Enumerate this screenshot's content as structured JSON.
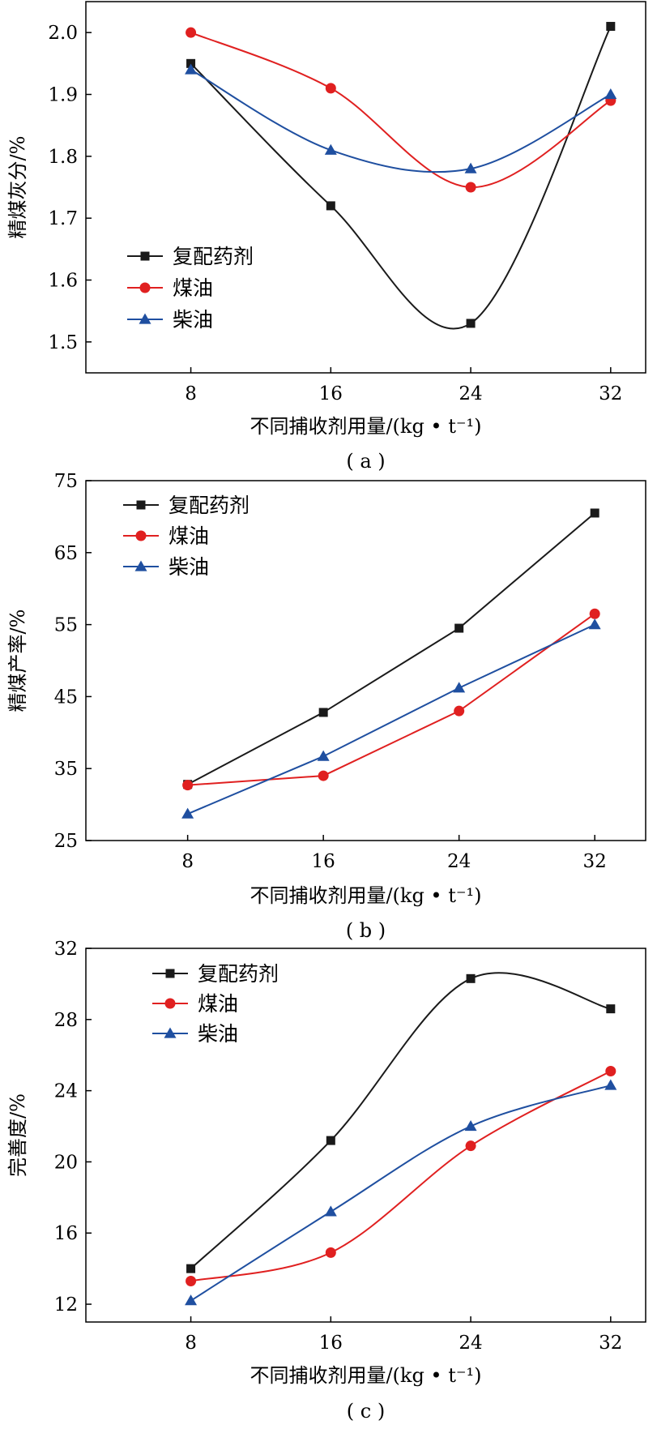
{
  "chart_data": [
    {
      "type": "line",
      "panel_label": "( a )",
      "xlabel": "不同捕收剂用量/(kg • t⁻¹)",
      "ylabel": "精煤灰分/%",
      "x": [
        8,
        16,
        24,
        32
      ],
      "xlim": [
        2,
        34
      ],
      "ylim": [
        1.45,
        2.05
      ],
      "yticks": [
        1.5,
        1.6,
        1.7,
        1.8,
        1.9,
        2.0
      ],
      "ytick_labels": [
        "1.5",
        "1.6",
        "1.7",
        "1.8",
        "1.9",
        "2.0"
      ],
      "smooth": true,
      "grid": false,
      "legend_position": "lower-left",
      "series": [
        {
          "name": "复配药剂",
          "marker": "square",
          "color": "#1a1a1a",
          "values": [
            1.95,
            1.72,
            1.53,
            2.01
          ]
        },
        {
          "name": "煤油",
          "marker": "circle",
          "color": "#e02020",
          "values": [
            2.0,
            1.91,
            1.75,
            1.89
          ]
        },
        {
          "name": "柴油",
          "marker": "triangle",
          "color": "#1f4fa0",
          "values": [
            1.94,
            1.81,
            1.78,
            1.9
          ]
        }
      ]
    },
    {
      "type": "line",
      "panel_label": "( b )",
      "xlabel": "不同捕收剂用量/(kg • t⁻¹)",
      "ylabel": "精煤产率/%",
      "x": [
        8,
        16,
        24,
        32
      ],
      "xlim": [
        2,
        35
      ],
      "ylim": [
        25,
        75
      ],
      "yticks": [
        25,
        35,
        45,
        55,
        65,
        75
      ],
      "ytick_labels": [
        "25",
        "35",
        "45",
        "55",
        "65",
        "75"
      ],
      "smooth": false,
      "grid": false,
      "legend_position": "top-left",
      "series": [
        {
          "name": "复配药剂",
          "marker": "square",
          "color": "#1a1a1a",
          "values": [
            32.8,
            42.8,
            54.5,
            70.5
          ]
        },
        {
          "name": "煤油",
          "marker": "circle",
          "color": "#e02020",
          "values": [
            32.7,
            34.0,
            43.0,
            56.5
          ]
        },
        {
          "name": "柴油",
          "marker": "triangle",
          "color": "#1f4fa0",
          "values": [
            28.7,
            36.7,
            46.2,
            55.0
          ]
        }
      ]
    },
    {
      "type": "line",
      "panel_label": "( c )",
      "xlabel": "不同捕收剂用量/(kg • t⁻¹)",
      "ylabel": "完善度/%",
      "x": [
        8,
        16,
        24,
        32
      ],
      "xlim": [
        2,
        34
      ],
      "ylim": [
        11,
        32
      ],
      "yticks": [
        12,
        16,
        20,
        24,
        28,
        32
      ],
      "ytick_labels": [
        "12",
        "16",
        "20",
        "24",
        "28",
        "32"
      ],
      "smooth": true,
      "grid": false,
      "legend_position": "top-left",
      "series": [
        {
          "name": "复配药剂",
          "marker": "square",
          "color": "#1a1a1a",
          "values": [
            14.0,
            21.2,
            30.3,
            28.6
          ]
        },
        {
          "name": "煤油",
          "marker": "circle",
          "color": "#e02020",
          "values": [
            13.3,
            14.9,
            20.9,
            25.1
          ]
        },
        {
          "name": "柴油",
          "marker": "triangle",
          "color": "#1f4fa0",
          "values": [
            12.2,
            17.2,
            22.0,
            24.3
          ]
        }
      ]
    }
  ]
}
